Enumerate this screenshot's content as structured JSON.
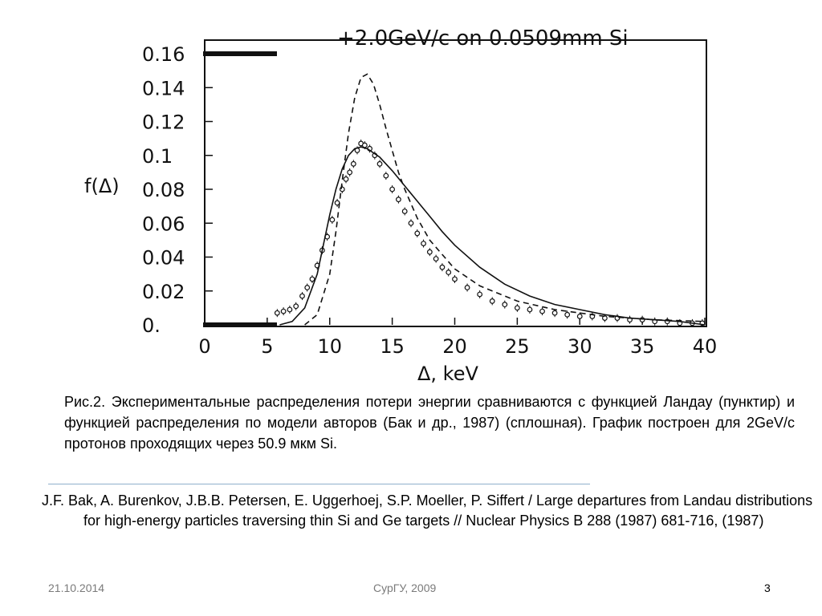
{
  "chart_data": {
    "type": "scatter",
    "title": "+2.0GeV/c on 0.0509mm  Si",
    "xlabel": "Δ, keV",
    "ylabel": "f(Δ)",
    "xlim": [
      0,
      40
    ],
    "ylim": [
      0,
      0.165
    ],
    "x_ticks": [
      "0",
      "5",
      "10",
      "15",
      "20",
      "25",
      "30",
      "35",
      "40"
    ],
    "y_ticks": [
      "0.",
      "0.02",
      "0.04",
      "0.06",
      "0.08",
      "0.1",
      "0.12",
      "0.14",
      "0.16"
    ],
    "grid": false,
    "series": [
      {
        "style": "points",
        "x": [
          5.8,
          6.3,
          6.8,
          7.3,
          7.8,
          8.2,
          8.6,
          9.0,
          9.4,
          9.8,
          10.2,
          10.6,
          11.0,
          11.3,
          11.6,
          11.9,
          12.2,
          12.5,
          12.8,
          13.2,
          13.6,
          14.0,
          14.5,
          15.0,
          15.5,
          16.0,
          16.5,
          17.0,
          17.5,
          18.0,
          18.5,
          19.0,
          19.5,
          20.0,
          21.0,
          22.0,
          23.0,
          24.0,
          25.0,
          26.0,
          27.0,
          28.0,
          29.0,
          30.0,
          31.0,
          32.0,
          33.0,
          34.0,
          35.0,
          36.0,
          37.0,
          38.0,
          39.0,
          39.8
        ],
        "y": [
          0.007,
          0.008,
          0.009,
          0.011,
          0.017,
          0.022,
          0.027,
          0.035,
          0.044,
          0.052,
          0.062,
          0.072,
          0.08,
          0.086,
          0.09,
          0.095,
          0.103,
          0.107,
          0.106,
          0.104,
          0.1,
          0.095,
          0.088,
          0.08,
          0.074,
          0.067,
          0.06,
          0.054,
          0.048,
          0.043,
          0.039,
          0.034,
          0.031,
          0.027,
          0.022,
          0.018,
          0.014,
          0.012,
          0.01,
          0.009,
          0.008,
          0.007,
          0.006,
          0.005,
          0.005,
          0.004,
          0.004,
          0.003,
          0.003,
          0.002,
          0.002,
          0.001,
          0.001,
          0.001
        ]
      },
      {
        "style": "solid",
        "x": [
          6.0,
          7.0,
          8.0,
          9.0,
          10.0,
          10.5,
          11.0,
          11.5,
          12.0,
          12.5,
          13.0,
          14.0,
          15.0,
          16.0,
          17.0,
          18.0,
          19.0,
          20.0,
          22.0,
          24.0,
          26.0,
          28.0,
          30.0,
          32.0,
          34.0,
          36.0,
          38.0,
          40.0
        ],
        "y": [
          0.0,
          0.002,
          0.01,
          0.03,
          0.065,
          0.08,
          0.092,
          0.1,
          0.104,
          0.105,
          0.104,
          0.099,
          0.091,
          0.082,
          0.073,
          0.064,
          0.055,
          0.047,
          0.034,
          0.024,
          0.017,
          0.012,
          0.009,
          0.006,
          0.004,
          0.003,
          0.002,
          0.0
        ]
      },
      {
        "style": "dashed",
        "x": [
          8.0,
          9.0,
          10.0,
          10.5,
          11.0,
          11.5,
          12.0,
          12.5,
          13.0,
          13.5,
          14.0,
          14.5,
          15.0,
          15.5,
          16.0,
          17.0,
          18.0,
          20.0,
          22.0,
          25.0,
          28.0,
          32.0,
          36.0,
          40.0
        ],
        "y": [
          0.0,
          0.006,
          0.03,
          0.055,
          0.085,
          0.113,
          0.134,
          0.146,
          0.148,
          0.142,
          0.13,
          0.116,
          0.103,
          0.09,
          0.08,
          0.063,
          0.05,
          0.033,
          0.023,
          0.014,
          0.009,
          0.005,
          0.003,
          0.002
        ]
      }
    ]
  },
  "caption": "Рис.2. Экспериментальные распределения потери энергии сравниваются с функцией Ландау (пунктир) и функцией распределения по  модели авторов (Бак и др., 1987) (сплошная). График построен для 2GeV/c протонов проходящих через 50.9 мкм Si.",
  "reference": "J.F. Bak, A. Burenkov, J.B.B. Petersen, E. Uggerhoej, S.P. Moeller, P. Siffert / Large departures from Landau distributions for high-energy particles traversing thin Si and Ge targets // Nuclear Physics B 288 (1987) 681-716, (1987)",
  "footer": {
    "date": "21.10.2014",
    "center": "СурГУ, 2009",
    "page": "3"
  }
}
